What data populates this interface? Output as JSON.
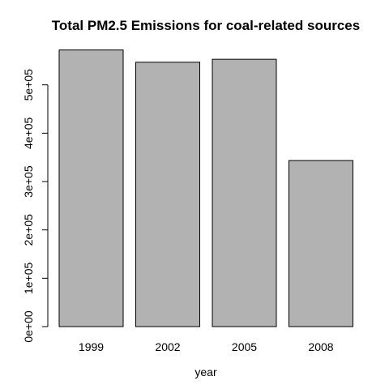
{
  "chart_data": {
    "type": "bar",
    "title": "Total PM2.5 Emissions for coal-related sources",
    "xlabel": "year",
    "ylabel": "",
    "categories": [
      "1999",
      "2002",
      "2005",
      "2008"
    ],
    "values": [
      572126,
      546789,
      552881,
      343432
    ],
    "ylim": [
      0,
      590000
    ],
    "yticks": [
      0,
      100000,
      200000,
      300000,
      400000,
      500000
    ],
    "ytick_labels": [
      "0e+00",
      "1e+05",
      "2e+05",
      "3e+05",
      "4e+05",
      "5e+05"
    ],
    "grid": false,
    "legend": "none",
    "colors": {
      "bar_fill": "#b2b2b2",
      "bar_stroke": "#000000",
      "axis": "#000000",
      "text": "#000000",
      "background": "#ffffff"
    }
  }
}
